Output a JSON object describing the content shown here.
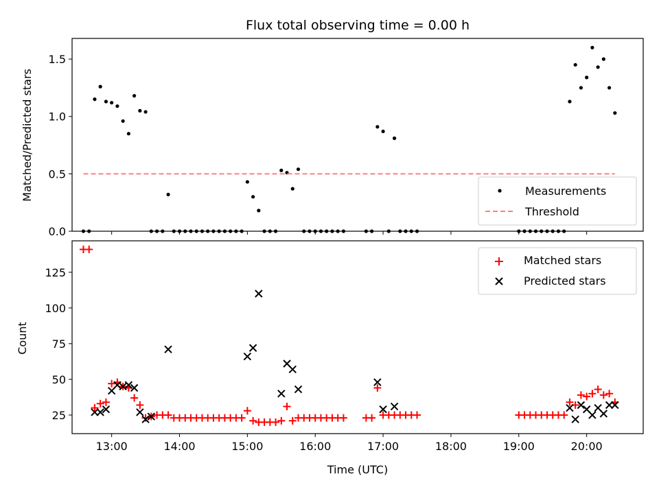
{
  "figure": {
    "title": "Flux total observing time = 0.00 h",
    "xlabel": "Time (UTC)"
  },
  "chart_data": [
    {
      "type": "scatter",
      "ylabel": "Matched/Predicted stars",
      "ylim": [
        0,
        1.68
      ],
      "xlim": [
        "12:25",
        "20:50"
      ],
      "x_ticks": [
        "13:00",
        "14:00",
        "15:00",
        "16:00",
        "17:00",
        "18:00",
        "19:00",
        "20:00"
      ],
      "y_ticks": [
        "0.0",
        "0.5",
        "1.0",
        "1.5"
      ],
      "y_tick_values": [
        0,
        0.5,
        1.0,
        1.5
      ],
      "legend": "lower right",
      "grid": false,
      "series": [
        {
          "name": "Measurements",
          "color": "#000000",
          "marker": "dot",
          "points": [
            [
              "12:35",
              0
            ],
            [
              "12:40",
              0
            ],
            [
              "12:45",
              1.15
            ],
            [
              "12:50",
              1.26
            ],
            [
              "12:55",
              1.13
            ],
            [
              "13:00",
              1.12
            ],
            [
              "13:05",
              1.09
            ],
            [
              "13:10",
              0.96
            ],
            [
              "13:15",
              0.85
            ],
            [
              "13:20",
              1.18
            ],
            [
              "13:25",
              1.05
            ],
            [
              "13:30",
              1.04
            ],
            [
              "13:35",
              0
            ],
            [
              "13:40",
              0
            ],
            [
              "13:45",
              0
            ],
            [
              "13:50",
              0.32
            ],
            [
              "13:55",
              0
            ],
            [
              "14:00",
              0
            ],
            [
              "14:05",
              0
            ],
            [
              "14:10",
              0
            ],
            [
              "14:15",
              0
            ],
            [
              "14:20",
              0
            ],
            [
              "14:25",
              0
            ],
            [
              "14:30",
              0
            ],
            [
              "14:35",
              0
            ],
            [
              "14:40",
              0
            ],
            [
              "14:45",
              0
            ],
            [
              "14:50",
              0
            ],
            [
              "14:55",
              0
            ],
            [
              "15:00",
              0.43
            ],
            [
              "15:05",
              0.3
            ],
            [
              "15:10",
              0.18
            ],
            [
              "15:15",
              0
            ],
            [
              "15:20",
              0
            ],
            [
              "15:25",
              0
            ],
            [
              "15:30",
              0.53
            ],
            [
              "15:35",
              0.51
            ],
            [
              "15:40",
              0.37
            ],
            [
              "15:45",
              0.54
            ],
            [
              "15:50",
              0
            ],
            [
              "15:55",
              0
            ],
            [
              "16:00",
              0
            ],
            [
              "16:05",
              0
            ],
            [
              "16:10",
              0
            ],
            [
              "16:15",
              0
            ],
            [
              "16:20",
              0
            ],
            [
              "16:25",
              0
            ],
            [
              "16:45",
              0
            ],
            [
              "16:50",
              0
            ],
            [
              "16:55",
              0.91
            ],
            [
              "17:00",
              0.87
            ],
            [
              "17:05",
              0
            ],
            [
              "17:10",
              0.81
            ],
            [
              "17:15",
              0
            ],
            [
              "17:20",
              0
            ],
            [
              "17:25",
              0
            ],
            [
              "17:30",
              0
            ],
            [
              "19:00",
              0
            ],
            [
              "19:05",
              0
            ],
            [
              "19:10",
              0
            ],
            [
              "19:15",
              0
            ],
            [
              "19:20",
              0
            ],
            [
              "19:25",
              0
            ],
            [
              "19:30",
              0
            ],
            [
              "19:35",
              0
            ],
            [
              "19:40",
              0
            ],
            [
              "19:45",
              1.13
            ],
            [
              "19:50",
              1.45
            ],
            [
              "19:55",
              1.25
            ],
            [
              "20:00",
              1.34
            ],
            [
              "20:05",
              1.6
            ],
            [
              "20:10",
              1.43
            ],
            [
              "20:15",
              1.5
            ],
            [
              "20:20",
              1.25
            ],
            [
              "20:25",
              1.03
            ]
          ]
        },
        {
          "name": "Threshold",
          "color": "#ff7f7f",
          "marker": "dashed-line",
          "points": [
            [
              "12:35",
              0.5
            ],
            [
              "20:25",
              0.5
            ]
          ]
        }
      ]
    },
    {
      "type": "scatter",
      "ylabel": "Count",
      "ylim": [
        12,
        147
      ],
      "xlim": [
        "12:25",
        "20:50"
      ],
      "x_ticks": [
        "13:00",
        "14:00",
        "15:00",
        "16:00",
        "17:00",
        "18:00",
        "19:00",
        "20:00"
      ],
      "y_ticks": [
        "25",
        "50",
        "75",
        "100",
        "125"
      ],
      "y_tick_values": [
        25,
        50,
        75,
        100,
        125
      ],
      "legend": "upper right",
      "grid": false,
      "series": [
        {
          "name": "Matched stars",
          "color": "#ff0000",
          "marker": "plus",
          "points": [
            [
              "12:35",
              141
            ],
            [
              "12:40",
              141
            ],
            [
              "12:45",
              30
            ],
            [
              "12:50",
              33
            ],
            [
              "12:55",
              34
            ],
            [
              "13:00",
              47
            ],
            [
              "13:05",
              48
            ],
            [
              "13:10",
              45
            ],
            [
              "13:15",
              44
            ],
            [
              "13:20",
              37
            ],
            [
              "13:25",
              32
            ],
            [
              "13:30",
              23
            ],
            [
              "13:35",
              24
            ],
            [
              "13:40",
              25
            ],
            [
              "13:45",
              25
            ],
            [
              "13:50",
              25
            ],
            [
              "13:55",
              23
            ],
            [
              "14:00",
              23
            ],
            [
              "14:05",
              23
            ],
            [
              "14:10",
              23
            ],
            [
              "14:15",
              23
            ],
            [
              "14:20",
              23
            ],
            [
              "14:25",
              23
            ],
            [
              "14:30",
              23
            ],
            [
              "14:35",
              23
            ],
            [
              "14:40",
              23
            ],
            [
              "14:45",
              23
            ],
            [
              "14:50",
              23
            ],
            [
              "14:55",
              23
            ],
            [
              "15:00",
              28
            ],
            [
              "15:05",
              21
            ],
            [
              "15:10",
              20
            ],
            [
              "15:15",
              20
            ],
            [
              "15:20",
              20
            ],
            [
              "15:25",
              20
            ],
            [
              "15:30",
              21
            ],
            [
              "15:35",
              31
            ],
            [
              "15:40",
              21
            ],
            [
              "15:45",
              23
            ],
            [
              "15:50",
              23
            ],
            [
              "15:55",
              23
            ],
            [
              "16:00",
              23
            ],
            [
              "16:05",
              23
            ],
            [
              "16:10",
              23
            ],
            [
              "16:15",
              23
            ],
            [
              "16:20",
              23
            ],
            [
              "16:25",
              23
            ],
            [
              "16:45",
              23
            ],
            [
              "16:50",
              23
            ],
            [
              "16:55",
              44
            ],
            [
              "17:00",
              25
            ],
            [
              "17:05",
              25
            ],
            [
              "17:10",
              25
            ],
            [
              "17:15",
              25
            ],
            [
              "17:20",
              25
            ],
            [
              "17:25",
              25
            ],
            [
              "17:30",
              25
            ],
            [
              "19:00",
              25
            ],
            [
              "19:05",
              25
            ],
            [
              "19:10",
              25
            ],
            [
              "19:15",
              25
            ],
            [
              "19:20",
              25
            ],
            [
              "19:25",
              25
            ],
            [
              "19:30",
              25
            ],
            [
              "19:35",
              25
            ],
            [
              "19:40",
              25
            ],
            [
              "19:45",
              34
            ],
            [
              "19:50",
              32
            ],
            [
              "19:55",
              39
            ],
            [
              "20:00",
              38
            ],
            [
              "20:05",
              40
            ],
            [
              "20:10",
              43
            ],
            [
              "20:15",
              39
            ],
            [
              "20:20",
              40
            ],
            [
              "20:25",
              34
            ]
          ]
        },
        {
          "name": "Predicted stars",
          "color": "#000000",
          "marker": "x",
          "points": [
            [
              "12:45",
              27
            ],
            [
              "12:50",
              27
            ],
            [
              "12:55",
              29
            ],
            [
              "13:00",
              42
            ],
            [
              "13:05",
              46
            ],
            [
              "13:10",
              45
            ],
            [
              "13:15",
              46
            ],
            [
              "13:20",
              44
            ],
            [
              "13:25",
              27
            ],
            [
              "13:30",
              22
            ],
            [
              "13:35",
              24
            ],
            [
              "13:50",
              71
            ],
            [
              "15:00",
              66
            ],
            [
              "15:05",
              72
            ],
            [
              "15:10",
              110
            ],
            [
              "15:30",
              40
            ],
            [
              "15:35",
              61
            ],
            [
              "15:40",
              57
            ],
            [
              "15:45",
              43
            ],
            [
              "16:55",
              48
            ],
            [
              "17:00",
              29
            ],
            [
              "17:10",
              31
            ],
            [
              "19:45",
              30
            ],
            [
              "19:50",
              22
            ],
            [
              "19:55",
              32
            ],
            [
              "20:00",
              29
            ],
            [
              "20:05",
              25
            ],
            [
              "20:10",
              30
            ],
            [
              "20:15",
              26
            ],
            [
              "20:20",
              32
            ],
            [
              "20:25",
              32
            ]
          ]
        }
      ]
    }
  ]
}
